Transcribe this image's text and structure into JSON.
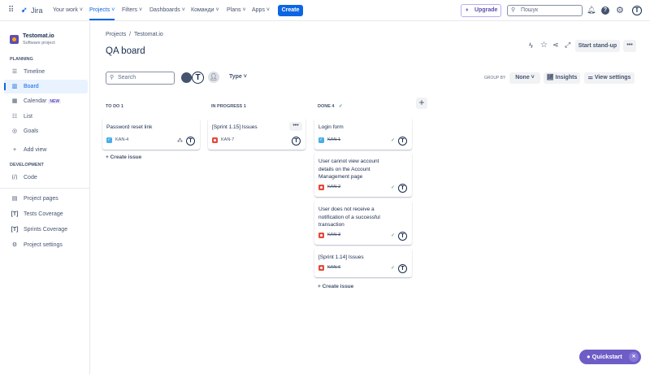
{
  "topnav": {
    "logo": "Jira",
    "items": [
      "Your work",
      "Projects",
      "Filters",
      "Dashboards",
      "Команди",
      "Plans",
      "Apps"
    ],
    "create": "Create",
    "upgrade": "Upgrade",
    "search_placeholder": "Пошук",
    "avatar": "T"
  },
  "sidebar": {
    "project_name": "Testomat.io",
    "project_type": "Software project",
    "planning_label": "PLANNING",
    "planning": [
      {
        "label": "Timeline",
        "icon": "timeline-icon"
      },
      {
        "label": "Board",
        "icon": "board-icon"
      },
      {
        "label": "Calendar",
        "icon": "calendar-icon",
        "badge": "NEW"
      },
      {
        "label": "List",
        "icon": "list-icon"
      },
      {
        "label": "Goals",
        "icon": "goals-icon"
      },
      {
        "label": "Add view",
        "icon": "plus-icon"
      }
    ],
    "development_label": "DEVELOPMENT",
    "development": [
      {
        "label": "Code",
        "icon": "code-icon"
      }
    ],
    "bottom": [
      {
        "label": "Project pages",
        "icon": "page-icon"
      },
      {
        "label": "Tests Coverage",
        "icon": "testomat-icon"
      },
      {
        "label": "Sprints Coverage",
        "icon": "testomat-icon"
      },
      {
        "label": "Project settings",
        "icon": "gear-icon"
      }
    ]
  },
  "header": {
    "breadcrumb": [
      "Projects",
      "Testomat.io"
    ],
    "title": "QA board",
    "start_standup": "Start stand-up"
  },
  "toolbar": {
    "search_placeholder": "Search",
    "type": "Type",
    "group_by_label": "GROUP BY",
    "group_by_value": "None",
    "insights": "Insights",
    "view_settings": "View settings"
  },
  "columns": [
    {
      "title": "TO DO 1",
      "cards": [
        {
          "title": "Password reset link",
          "key": "KAN-4",
          "type": "task"
        }
      ]
    },
    {
      "title": "IN PROGRESS 1",
      "cards": [
        {
          "title": "[Sprint 1.15] Issues",
          "key": "KAN-7",
          "type": "bug"
        }
      ]
    },
    {
      "title": "DONE 4",
      "cards": [
        {
          "title": "Login form",
          "key": "KAN-1",
          "type": "task"
        },
        {
          "title": "User cannot view account details on the Account Management page",
          "key": "KAN-2",
          "type": "bug"
        },
        {
          "title": "User does not receive a notification of a successful transaction",
          "key": "KAN-3",
          "type": "bug"
        },
        {
          "title": "[Sprint 1.14] Issues",
          "key": "KAN-6",
          "type": "bug"
        }
      ]
    }
  ],
  "create_issue": "Create issue",
  "quickstart": "Quickstart",
  "colors": {
    "accent": "#0c66e4",
    "quickstart": "#6e5dc6",
    "bug": "#e5493a",
    "task": "#4bade8"
  }
}
